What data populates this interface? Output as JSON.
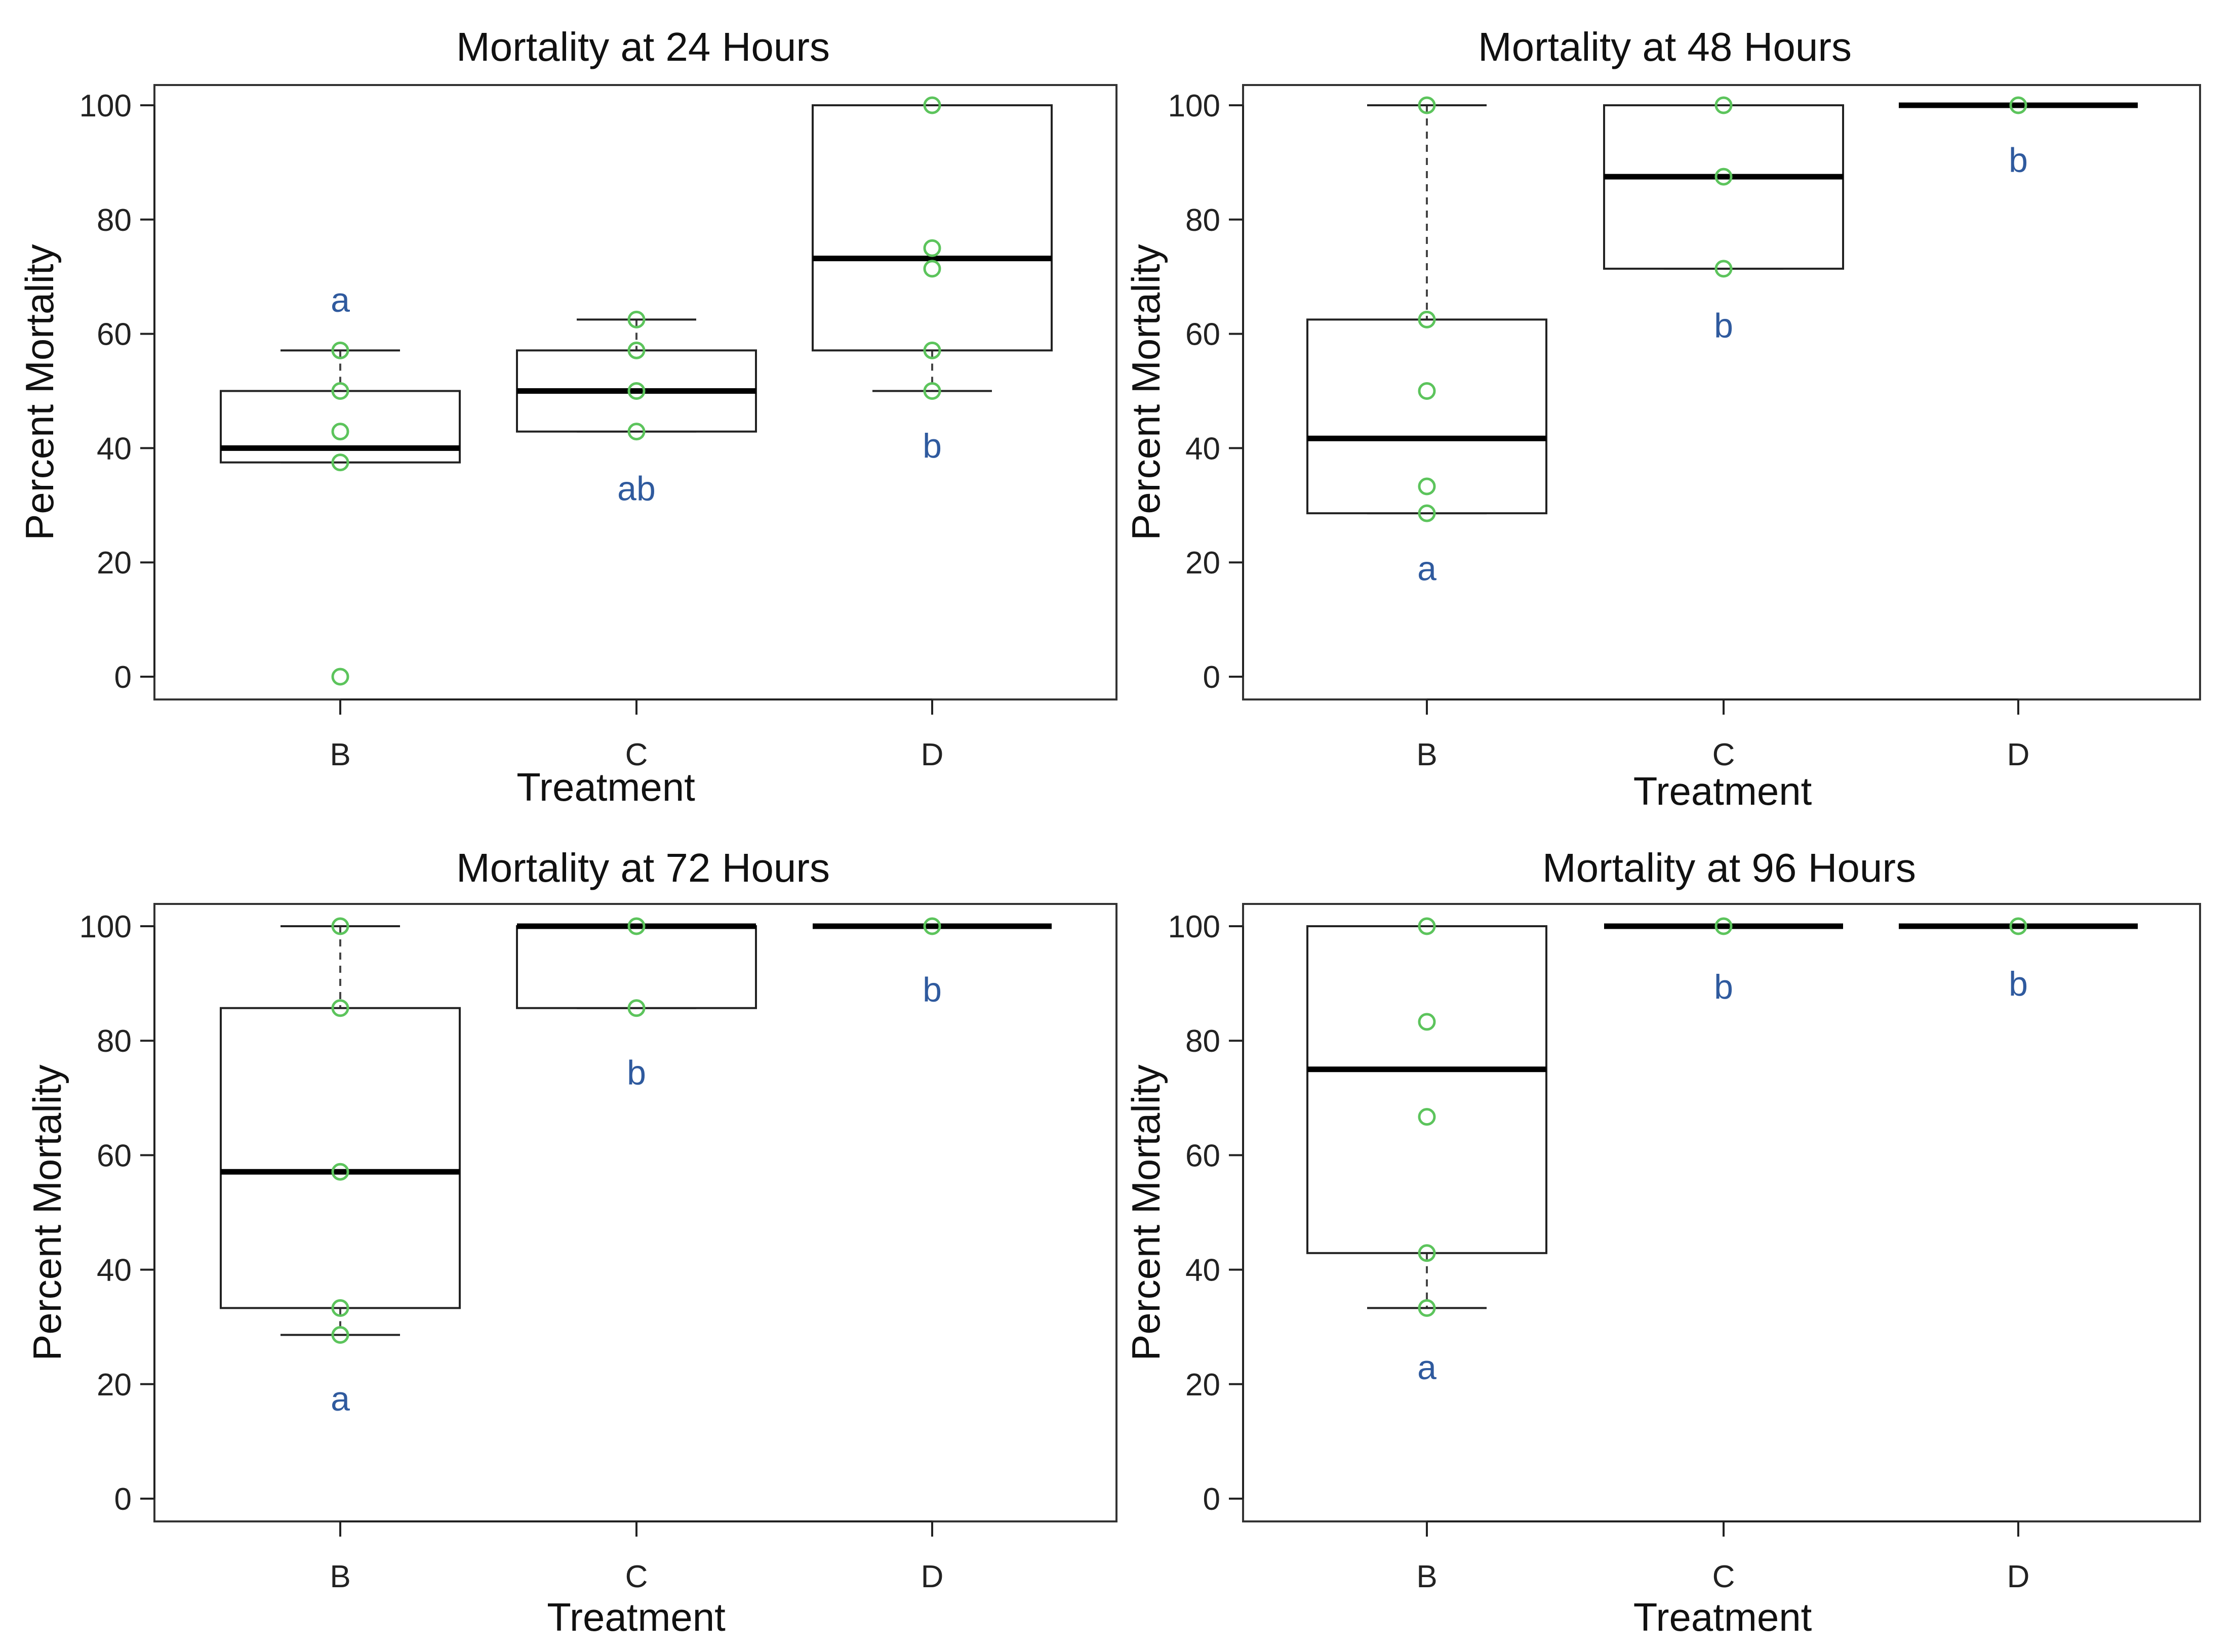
{
  "colors": {
    "point": "#5cc45c",
    "letter": "#2f5a9e"
  },
  "chart_data": [
    {
      "type": "boxplot",
      "title": "Mortality at 24 Hours",
      "xlabel": "Treatment",
      "ylabel": "Percent Mortality",
      "ylim": [
        0,
        100
      ],
      "yticks": [
        "0",
        "20",
        "40",
        "60",
        "80",
        "100"
      ],
      "categories": [
        "B",
        "C",
        "D"
      ],
      "boxes": [
        {
          "category": "B",
          "min": 37.5,
          "q1": 37.5,
          "median": 40,
          "q3": 50,
          "max": 57.1,
          "outliers": [
            0
          ],
          "points": [
            57.1,
            50,
            42.9,
            37.5,
            0
          ],
          "letter": "a",
          "letter_y": 66
        },
        {
          "category": "C",
          "min": 42.9,
          "q1": 42.9,
          "median": 50,
          "q3": 57.1,
          "max": 62.5,
          "outliers": [],
          "points": [
            62.5,
            57.1,
            50,
            42.9
          ],
          "letter": "ab",
          "letter_y": 33
        },
        {
          "category": "D",
          "min": 50,
          "q1": 57.1,
          "median": 73.2,
          "q3": 100,
          "max": 100,
          "outliers": [],
          "points": [
            100,
            75,
            71.4,
            57.1,
            50
          ],
          "letter": "b",
          "letter_y": 40.5
        }
      ]
    },
    {
      "type": "boxplot",
      "title": "Mortality at 48 Hours",
      "xlabel": "Treatment",
      "ylabel": "Percent Mortality",
      "ylim": [
        0,
        100
      ],
      "yticks": [
        "0",
        "20",
        "40",
        "60",
        "80",
        "100"
      ],
      "categories": [
        "B",
        "C",
        "D"
      ],
      "boxes": [
        {
          "category": "B",
          "min": 28.6,
          "q1": 28.6,
          "median": 41.7,
          "q3": 62.5,
          "max": 100,
          "outliers": [],
          "points": [
            100,
            62.5,
            50,
            33.3,
            28.6
          ],
          "letter": "a",
          "letter_y": 19
        },
        {
          "category": "C",
          "min": 71.4,
          "q1": 71.4,
          "median": 87.5,
          "q3": 100,
          "max": 100,
          "outliers": [],
          "points": [
            100,
            87.5,
            71.4
          ],
          "letter": "b",
          "letter_y": 61.5
        },
        {
          "category": "D",
          "min": 100,
          "q1": 100,
          "median": 100,
          "q3": 100,
          "max": 100,
          "outliers": [],
          "points": [
            100
          ],
          "letter": "b",
          "letter_y": 90.5
        }
      ]
    },
    {
      "type": "boxplot",
      "title": "Mortality at 72 Hours",
      "xlabel": "Treatment",
      "ylabel": "Percent Mortality",
      "ylim": [
        0,
        100
      ],
      "yticks": [
        "0",
        "20",
        "40",
        "60",
        "80",
        "100"
      ],
      "categories": [
        "B",
        "C",
        "D"
      ],
      "boxes": [
        {
          "category": "B",
          "min": 28.6,
          "q1": 33.3,
          "median": 57.1,
          "q3": 85.7,
          "max": 100,
          "outliers": [],
          "points": [
            100,
            85.7,
            57.1,
            33.3,
            28.6
          ],
          "letter": "a",
          "letter_y": 17.5
        },
        {
          "category": "C",
          "min": 85.7,
          "q1": 85.7,
          "median": 100,
          "q3": 100,
          "max": 100,
          "outliers": [],
          "points": [
            100,
            85.7
          ],
          "letter": "b",
          "letter_y": 74.5
        },
        {
          "category": "D",
          "min": 100,
          "q1": 100,
          "median": 100,
          "q3": 100,
          "max": 100,
          "outliers": [],
          "points": [
            100
          ],
          "letter": "b",
          "letter_y": 89
        }
      ]
    },
    {
      "type": "boxplot",
      "title": "Mortality at 96 Hours",
      "xlabel": "Treatment",
      "ylabel": "Percent Mortality",
      "ylim": [
        0,
        100
      ],
      "yticks": [
        "0",
        "20",
        "40",
        "60",
        "80",
        "100"
      ],
      "categories": [
        "B",
        "C",
        "D"
      ],
      "boxes": [
        {
          "category": "B",
          "min": 33.3,
          "q1": 42.9,
          "median": 75,
          "q3": 100,
          "max": 100,
          "outliers": [],
          "points": [
            100,
            83.3,
            66.7,
            42.9,
            33.3
          ],
          "letter": "a",
          "letter_y": 23
        },
        {
          "category": "C",
          "min": 100,
          "q1": 100,
          "median": 100,
          "q3": 100,
          "max": 100,
          "outliers": [],
          "points": [
            100
          ],
          "letter": "b",
          "letter_y": 89.5
        },
        {
          "category": "D",
          "min": 100,
          "q1": 100,
          "median": 100,
          "q3": 100,
          "max": 100,
          "outliers": [],
          "points": [
            100
          ],
          "letter": "b",
          "letter_y": 90
        }
      ]
    }
  ]
}
